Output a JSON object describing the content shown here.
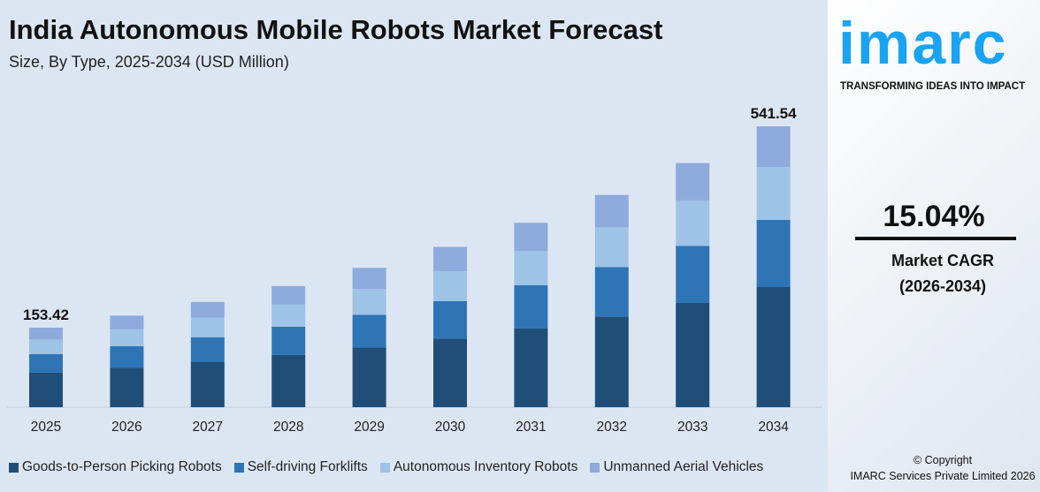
{
  "title": "India Autonomous Mobile Robots Market Forecast",
  "subtitle": "Size, By Type, 2025-2034 (USD Million)",
  "brand": {
    "logo": "imarc",
    "tagline": "TRANSFORMING IDEAS INTO IMPACT",
    "color": "#1aa3f0"
  },
  "cagr": {
    "value": "15.04%",
    "label": "Market CAGR",
    "period": "(2026-2034)"
  },
  "copyright": {
    "line1": "© Copyright",
    "line2": "IMARC Services Private Limited 2026"
  },
  "chart_data": {
    "type": "bar",
    "stacked": true,
    "title": "India Autonomous Mobile Robots Market Forecast",
    "subtitle": "Size, By Type, 2025-2034 (USD Million)",
    "categories": [
      "2025",
      "2026",
      "2027",
      "2028",
      "2029",
      "2030",
      "2031",
      "2032",
      "2033",
      "2034"
    ],
    "series": [
      {
        "name": "Goods-to-Person Picking Robots",
        "color": "#1f4e79",
        "values": [
          66.5,
          76.4,
          87.6,
          100.6,
          115.4,
          132.5,
          152.2,
          174.9,
          201.0,
          231.6
        ]
      },
      {
        "name": "Self-driving Forklifts",
        "color": "#2e75b6",
        "values": [
          35.8,
          41.2,
          47.4,
          54.5,
          62.6,
          72.0,
          82.9,
          95.4,
          109.8,
          129.4
        ]
      },
      {
        "name": "Autonomous Inventory Robots",
        "color": "#9dc3e6",
        "values": [
          28.1,
          32.5,
          37.5,
          43.3,
          49.9,
          57.6,
          66.3,
          76.4,
          88.0,
          102.2
        ]
      },
      {
        "name": "Unmanned Aerial Vehicles",
        "color": "#8faadc",
        "values": [
          23.0,
          26.4,
          30.5,
          35.2,
          40.8,
          47.0,
          54.2,
          62.4,
          71.9,
          78.3
        ]
      }
    ],
    "data_labels": {
      "2025": "153.42",
      "2034": "541.54"
    },
    "ylim": [
      0,
      541.54
    ],
    "grid": false,
    "legend": "bottom"
  }
}
